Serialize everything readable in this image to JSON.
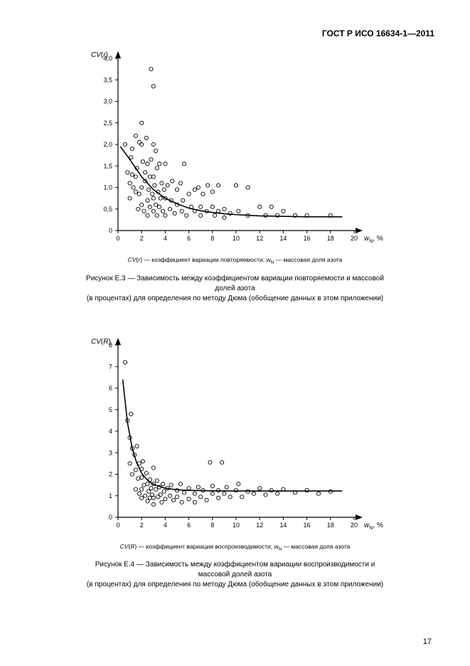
{
  "doc_header": "ГОСТ Р ИСО 16634-1—2011",
  "page_number": "17",
  "chart1": {
    "type": "scatter",
    "y_label": "CV(r)",
    "x_label": "w",
    "x_label_sub": "N",
    "x_unit": ", %",
    "xlim": [
      0,
      20
    ],
    "ylim": [
      0,
      4.0
    ],
    "xtick_step": 2,
    "ytick_step": 0.5,
    "xticks": [
      0,
      2,
      4,
      6,
      8,
      10,
      12,
      14,
      16,
      18,
      20
    ],
    "yticks": [
      0,
      0.5,
      1.0,
      1.5,
      2.0,
      2.5,
      3.0,
      3.5,
      4.0
    ],
    "ytick_labels": [
      "0",
      "0,5",
      "1,0",
      "1,5",
      "2,0",
      "2,5",
      "3,0",
      "3,5",
      "4,0"
    ],
    "background_color": "#ffffff",
    "axis_color": "#000000",
    "marker_style": "circle",
    "marker_fill": "none",
    "marker_stroke": "#000000",
    "marker_radius": 2.6,
    "line_color": "#000000",
    "line_width": 1.6,
    "font_size_axis": 9,
    "points": [
      [
        0.6,
        2.0
      ],
      [
        0.8,
        1.35
      ],
      [
        1.0,
        1.1
      ],
      [
        1.0,
        0.75
      ],
      [
        1.1,
        1.7
      ],
      [
        1.2,
        1.9
      ],
      [
        1.2,
        1.3
      ],
      [
        1.3,
        1.0
      ],
      [
        1.5,
        2.2
      ],
      [
        1.5,
        1.25
      ],
      [
        1.5,
        0.9
      ],
      [
        1.6,
        1.45
      ],
      [
        1.7,
        0.5
      ],
      [
        1.8,
        2.05
      ],
      [
        1.8,
        0.85
      ],
      [
        2.0,
        2.5
      ],
      [
        2.0,
        2.0
      ],
      [
        2.0,
        1.0
      ],
      [
        2.0,
        0.6
      ],
      [
        2.1,
        1.6
      ],
      [
        2.2,
        0.45
      ],
      [
        2.3,
        1.15
      ],
      [
        2.3,
        1.35
      ],
      [
        2.4,
        2.15
      ],
      [
        2.5,
        1.55
      ],
      [
        2.5,
        0.7
      ],
      [
        2.5,
        0.35
      ],
      [
        2.6,
        0.95
      ],
      [
        2.7,
        1.25
      ],
      [
        2.7,
        0.55
      ],
      [
        2.8,
        1.65
      ],
      [
        2.8,
        3.75
      ],
      [
        2.9,
        0.85
      ],
      [
        3.0,
        3.35
      ],
      [
        3.0,
        2.0
      ],
      [
        3.0,
        1.25
      ],
      [
        3.0,
        0.75
      ],
      [
        3.0,
        0.45
      ],
      [
        3.1,
        1.05
      ],
      [
        3.2,
        1.85
      ],
      [
        3.2,
        0.6
      ],
      [
        3.3,
        1.45
      ],
      [
        3.3,
        0.35
      ],
      [
        3.4,
        0.9
      ],
      [
        3.5,
        1.55
      ],
      [
        3.5,
        0.55
      ],
      [
        3.6,
        0.75
      ],
      [
        3.7,
        1.1
      ],
      [
        3.8,
        0.45
      ],
      [
        3.9,
        0.95
      ],
      [
        4.0,
        1.55
      ],
      [
        4.0,
        0.75
      ],
      [
        4.0,
        0.35
      ],
      [
        4.2,
        1.05
      ],
      [
        4.4,
        0.5
      ],
      [
        4.5,
        0.7
      ],
      [
        4.6,
        1.15
      ],
      [
        4.8,
        0.4
      ],
      [
        5.0,
        0.95
      ],
      [
        5.0,
        0.6
      ],
      [
        5.3,
        1.1
      ],
      [
        5.4,
        0.45
      ],
      [
        5.5,
        0.7
      ],
      [
        5.6,
        1.55
      ],
      [
        5.8,
        0.35
      ],
      [
        6.0,
        0.85
      ],
      [
        6.2,
        0.55
      ],
      [
        6.5,
        0.95
      ],
      [
        6.5,
        0.45
      ],
      [
        6.8,
        1.0
      ],
      [
        7.0,
        0.55
      ],
      [
        7.0,
        0.35
      ],
      [
        7.2,
        0.85
      ],
      [
        7.5,
        0.45
      ],
      [
        7.6,
        1.05
      ],
      [
        8.0,
        0.55
      ],
      [
        8.0,
        0.9
      ],
      [
        8.2,
        0.35
      ],
      [
        8.5,
        0.45
      ],
      [
        8.5,
        1.05
      ],
      [
        9.0,
        0.5
      ],
      [
        9.0,
        0.3
      ],
      [
        9.5,
        0.4
      ],
      [
        10.0,
        1.05
      ],
      [
        10.2,
        0.45
      ],
      [
        11.0,
        0.35
      ],
      [
        11.0,
        1.0
      ],
      [
        12.0,
        0.55
      ],
      [
        12.5,
        0.35
      ],
      [
        13.0,
        0.55
      ],
      [
        13.5,
        0.35
      ],
      [
        14.0,
        0.45
      ],
      [
        15.0,
        0.35
      ],
      [
        16.0,
        0.35
      ],
      [
        18.0,
        0.35
      ]
    ],
    "curve": [
      [
        0.2,
        1.95
      ],
      [
        1,
        1.65
      ],
      [
        2,
        1.25
      ],
      [
        3,
        0.95
      ],
      [
        4,
        0.75
      ],
      [
        5,
        0.62
      ],
      [
        6,
        0.52
      ],
      [
        7,
        0.46
      ],
      [
        8,
        0.42
      ],
      [
        9,
        0.39
      ],
      [
        10,
        0.37
      ],
      [
        12,
        0.34
      ],
      [
        14,
        0.33
      ],
      [
        16,
        0.32
      ],
      [
        18,
        0.32
      ],
      [
        19,
        0.32
      ]
    ],
    "legend_text_prefix": "CV(r) —  коэффициент вариации повторяемости; w",
    "legend_text_sub": "N",
    "legend_text_suffix": " — массовая доля азота",
    "caption_line1": "Рисунок Е.3  — Зависимость между коэффициентом вариации повторяемости и массовой долей азота",
    "caption_line2": "(в процентах) для определения по методу Дюма (обобщение данных в этом приложении)"
  },
  "chart2": {
    "type": "scatter",
    "y_label": "CV(R)",
    "x_label": "w",
    "x_label_sub": "N",
    "x_unit": ", %",
    "xlim": [
      0,
      20
    ],
    "ylim": [
      0,
      8
    ],
    "xtick_step": 2,
    "ytick_step": 1,
    "xticks": [
      0,
      2,
      4,
      6,
      8,
      10,
      12,
      14,
      16,
      18,
      20
    ],
    "yticks": [
      0,
      1,
      2,
      3,
      4,
      5,
      6,
      7,
      8
    ],
    "ytick_labels": [
      "0",
      "1",
      "2",
      "3",
      "4",
      "5",
      "6",
      "7",
      "8"
    ],
    "background_color": "#ffffff",
    "axis_color": "#000000",
    "marker_style": "circle",
    "marker_fill": "none",
    "marker_stroke": "#000000",
    "marker_radius": 2.6,
    "line_color": "#000000",
    "line_width": 1.6,
    "font_size_axis": 9,
    "points": [
      [
        0.6,
        7.2
      ],
      [
        0.8,
        4.5
      ],
      [
        1.0,
        3.7
      ],
      [
        1.0,
        2.5
      ],
      [
        1.1,
        4.8
      ],
      [
        1.2,
        3.2
      ],
      [
        1.2,
        2.0
      ],
      [
        1.4,
        2.9
      ],
      [
        1.5,
        2.2
      ],
      [
        1.5,
        1.3
      ],
      [
        1.6,
        3.3
      ],
      [
        1.7,
        1.8
      ],
      [
        1.8,
        2.5
      ],
      [
        1.8,
        1.1
      ],
      [
        2.0,
        1.85
      ],
      [
        2.0,
        2.25
      ],
      [
        2.0,
        1.3
      ],
      [
        2.0,
        0.9
      ],
      [
        2.1,
        2.6
      ],
      [
        2.2,
        1.5
      ],
      [
        2.3,
        1.0
      ],
      [
        2.4,
        2.05
      ],
      [
        2.5,
        1.55
      ],
      [
        2.5,
        0.75
      ],
      [
        2.6,
        1.2
      ],
      [
        2.7,
        1.75
      ],
      [
        2.7,
        0.9
      ],
      [
        2.8,
        1.35
      ],
      [
        2.9,
        1.05
      ],
      [
        3.0,
        2.3
      ],
      [
        3.0,
        1.55
      ],
      [
        3.0,
        0.9
      ],
      [
        3.0,
        0.6
      ],
      [
        3.2,
        1.3
      ],
      [
        3.3,
        1.7
      ],
      [
        3.4,
        0.95
      ],
      [
        3.5,
        1.4
      ],
      [
        3.6,
        1.05
      ],
      [
        3.7,
        0.7
      ],
      [
        3.8,
        1.55
      ],
      [
        3.9,
        1.2
      ],
      [
        4.0,
        0.85
      ],
      [
        4.2,
        1.35
      ],
      [
        4.4,
        1.0
      ],
      [
        4.5,
        1.5
      ],
      [
        4.7,
        0.8
      ],
      [
        5.0,
        1.25
      ],
      [
        5.0,
        0.95
      ],
      [
        5.3,
        1.55
      ],
      [
        5.4,
        0.7
      ],
      [
        5.6,
        1.15
      ],
      [
        6.0,
        1.35
      ],
      [
        6.0,
        0.85
      ],
      [
        6.5,
        1.1
      ],
      [
        6.5,
        0.7
      ],
      [
        6.8,
        1.4
      ],
      [
        7.0,
        0.95
      ],
      [
        7.2,
        1.25
      ],
      [
        7.5,
        0.8
      ],
      [
        7.8,
        2.55
      ],
      [
        8.0,
        1.1
      ],
      [
        8.0,
        1.45
      ],
      [
        8.5,
        0.9
      ],
      [
        8.5,
        1.25
      ],
      [
        8.8,
        2.55
      ],
      [
        9.0,
        1.1
      ],
      [
        9.2,
        1.4
      ],
      [
        9.5,
        0.95
      ],
      [
        10.0,
        1.25
      ],
      [
        10.2,
        1.55
      ],
      [
        10.5,
        0.95
      ],
      [
        11.0,
        1.2
      ],
      [
        11.5,
        1.1
      ],
      [
        12.0,
        1.35
      ],
      [
        12.5,
        1.05
      ],
      [
        13.0,
        1.25
      ],
      [
        13.5,
        1.1
      ],
      [
        14.0,
        1.3
      ],
      [
        15.0,
        1.15
      ],
      [
        16.0,
        1.25
      ],
      [
        17.0,
        1.1
      ],
      [
        18.0,
        1.2
      ]
    ],
    "curve": [
      [
        0.4,
        6.4
      ],
      [
        0.8,
        4.4
      ],
      [
        1.2,
        3.2
      ],
      [
        1.6,
        2.5
      ],
      [
        2.0,
        2.05
      ],
      [
        2.5,
        1.72
      ],
      [
        3.0,
        1.53
      ],
      [
        4.0,
        1.35
      ],
      [
        5.0,
        1.28
      ],
      [
        6.0,
        1.25
      ],
      [
        8.0,
        1.23
      ],
      [
        10,
        1.22
      ],
      [
        14,
        1.22
      ],
      [
        18,
        1.22
      ],
      [
        19,
        1.22
      ]
    ],
    "legend_text_prefix": "CV(R) —  коэффициент вариации воспроизводимости; w",
    "legend_text_sub": "N",
    "legend_text_suffix": "  —  массовая доля азота",
    "caption_line1": "Рисунок Е.4  — Зависимость между коэффициентом вариации воспроизводимости и массовой долей азота",
    "caption_line2": "(в процентах) для определения по методу Дюма (обобщение данных в этом приложении)"
  }
}
